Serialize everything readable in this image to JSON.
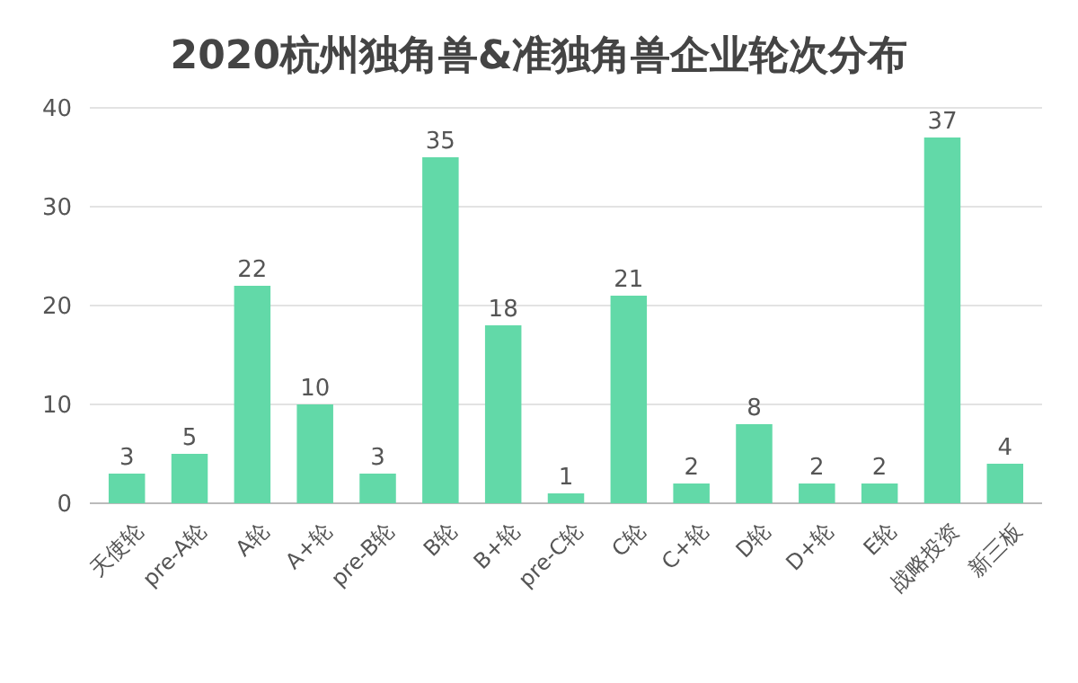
{
  "chart_data": {
    "type": "bar",
    "title": "2020杭州独角兽&准独角兽企业轮次分布",
    "categories": [
      "天使轮",
      "pre-A轮",
      "A轮",
      "A+轮",
      "pre-B轮",
      "B轮",
      "B+轮",
      "pre-C轮",
      "C轮",
      "C+轮",
      "D轮",
      "D+轮",
      "E轮",
      "战略投资",
      "新三板"
    ],
    "values": [
      3,
      5,
      22,
      10,
      3,
      35,
      18,
      1,
      21,
      2,
      8,
      2,
      2,
      37,
      4
    ],
    "color": "#62d9a8",
    "ylim": [
      0,
      40
    ],
    "yticks": [
      0,
      10,
      20,
      30,
      40
    ],
    "grid": "y",
    "data_labels": true
  }
}
